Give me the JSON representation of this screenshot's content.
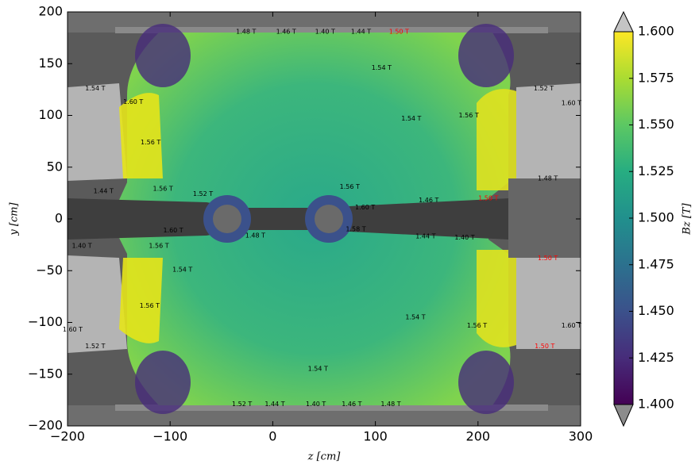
{
  "chart_data": {
    "type": "contour",
    "xlabel": "z [cm]",
    "ylabel": "y [cm]",
    "xlim": [
      -200,
      300
    ],
    "ylim": [
      -200,
      200
    ],
    "xticks": [
      {
        "value": -200,
        "label": "−200"
      },
      {
        "value": -100,
        "label": "−100"
      },
      0,
      100,
      200,
      300
    ],
    "yticks": [
      {
        "value": -200,
        "label": "−200"
      },
      {
        "value": -150,
        "label": "−150"
      },
      {
        "value": -100,
        "label": "−100"
      },
      {
        "value": -50,
        "label": "−50"
      },
      0,
      50,
      100,
      150,
      200
    ],
    "colorbar": {
      "label": "Bz [T]",
      "lim": [
        1.4,
        1.6
      ],
      "ticks": [
        {
          "value": 1.4,
          "label": "1.400"
        },
        {
          "value": 1.425,
          "label": "1.425"
        },
        {
          "value": 1.45,
          "label": "1.450"
        },
        {
          "value": 1.475,
          "label": "1.475"
        },
        {
          "value": 1.5,
          "label": "1.500"
        },
        {
          "value": 1.525,
          "label": "1.525"
        },
        {
          "value": 1.55,
          "label": "1.550"
        },
        {
          "value": 1.575,
          "label": "1.575"
        },
        {
          "value": 1.6,
          "label": "1.600"
        }
      ],
      "colors": [
        "#440154",
        "#472c7a",
        "#3b518b",
        "#2c718e",
        "#21908d",
        "#27ad81",
        "#5cc863",
        "#aadc32",
        "#fde725"
      ],
      "over_color": "#c4c4c4",
      "under_color": "#8c8c8c"
    },
    "annotations": [
      {
        "text": "1.48 T",
        "x": -26,
        "y": 181,
        "color": "#000000"
      },
      {
        "text": "1.46 T",
        "x": 13,
        "y": 181,
        "color": "#000000"
      },
      {
        "text": "1.40 T",
        "x": 51,
        "y": 181,
        "color": "#000000"
      },
      {
        "text": "1.44 T",
        "x": 86,
        "y": 181,
        "color": "#000000"
      },
      {
        "text": "1.50 T",
        "x": 123,
        "y": 181,
        "color": "#ff0000"
      },
      {
        "text": "1.54 T",
        "x": 106,
        "y": 146,
        "color": "#000000"
      },
      {
        "text": "1.54 T",
        "x": -173,
        "y": 126,
        "color": "#000000"
      },
      {
        "text": "1.60 T",
        "x": -136,
        "y": 113,
        "color": "#000000"
      },
      {
        "text": "1.56 T",
        "x": -119,
        "y": 74,
        "color": "#000000"
      },
      {
        "text": "1.54 T",
        "x": 135,
        "y": 97,
        "color": "#000000"
      },
      {
        "text": "1.56 T",
        "x": 191,
        "y": 100,
        "color": "#000000"
      },
      {
        "text": "1.52 T",
        "x": 264,
        "y": 126,
        "color": "#000000"
      },
      {
        "text": "1.60 T",
        "x": 291,
        "y": 112,
        "color": "#000000"
      },
      {
        "text": "1.48 T",
        "x": 268,
        "y": 39,
        "color": "#000000"
      },
      {
        "text": "1.44 T",
        "x": -165,
        "y": 27,
        "color": "#000000"
      },
      {
        "text": "1.56 T",
        "x": -107,
        "y": 29,
        "color": "#000000"
      },
      {
        "text": "1.52 T",
        "x": -68,
        "y": 24,
        "color": "#000000"
      },
      {
        "text": "1.56 T",
        "x": 75,
        "y": 31,
        "color": "#000000"
      },
      {
        "text": "1.60 T",
        "x": 90,
        "y": 11,
        "color": "#000000"
      },
      {
        "text": "1.46 T",
        "x": 152,
        "y": 18,
        "color": "#000000"
      },
      {
        "text": "1.50 T",
        "x": 210,
        "y": 20,
        "color": "#ff0000"
      },
      {
        "text": "1.60 T",
        "x": -97,
        "y": -11,
        "color": "#000000"
      },
      {
        "text": "1.48 T",
        "x": -17,
        "y": -16,
        "color": "#000000"
      },
      {
        "text": "1.58 T",
        "x": 81,
        "y": -10,
        "color": "#000000"
      },
      {
        "text": "1.44 T",
        "x": 149,
        "y": -17,
        "color": "#000000"
      },
      {
        "text": "1.40 T",
        "x": 187,
        "y": -18,
        "color": "#000000"
      },
      {
        "text": "1.40 T",
        "x": -186,
        "y": -26,
        "color": "#000000"
      },
      {
        "text": "1.56 T",
        "x": -111,
        "y": -26,
        "color": "#000000"
      },
      {
        "text": "1.54 T",
        "x": -88,
        "y": -49,
        "color": "#000000"
      },
      {
        "text": "1.50 T",
        "x": 268,
        "y": -38,
        "color": "#ff0000"
      },
      {
        "text": "1.56 T",
        "x": -120,
        "y": -84,
        "color": "#000000"
      },
      {
        "text": "1.54 T",
        "x": 139,
        "y": -95,
        "color": "#000000"
      },
      {
        "text": "1.56 T",
        "x": 199,
        "y": -103,
        "color": "#000000"
      },
      {
        "text": "1.60 T",
        "x": -195,
        "y": -107,
        "color": "#000000"
      },
      {
        "text": "1.52 T",
        "x": -173,
        "y": -123,
        "color": "#000000"
      },
      {
        "text": "1.50 T",
        "x": 265,
        "y": -123,
        "color": "#ff0000"
      },
      {
        "text": "1.60 T",
        "x": 291,
        "y": -103,
        "color": "#000000"
      },
      {
        "text": "1.54 T",
        "x": 44,
        "y": -145,
        "color": "#000000"
      },
      {
        "text": "1.52 T",
        "x": -30,
        "y": -179,
        "color": "#000000"
      },
      {
        "text": "1.44 T",
        "x": 2,
        "y": -179,
        "color": "#000000"
      },
      {
        "text": "1.40 T",
        "x": 42,
        "y": -179,
        "color": "#000000"
      },
      {
        "text": "1.46 T",
        "x": 77,
        "y": -179,
        "color": "#000000"
      },
      {
        "text": "1.48 T",
        "x": 115,
        "y": -179,
        "color": "#000000"
      }
    ]
  }
}
